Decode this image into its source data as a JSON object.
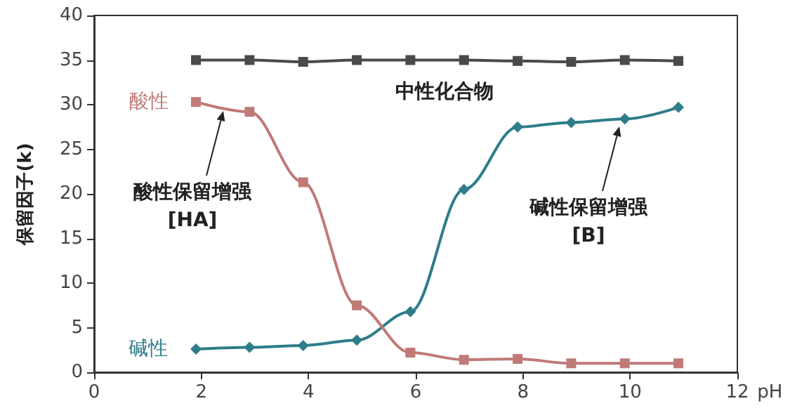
{
  "chart_data": {
    "type": "line",
    "xlabel": "pH",
    "ylabel": "保留因子(k)",
    "x": [
      1.9,
      2.9,
      3.9,
      4.9,
      5.9,
      6.9,
      7.9,
      8.9,
      9.9,
      10.9
    ],
    "series": [
      {
        "name": "中性化合物",
        "color": "#4a4a4a",
        "marker": "square",
        "values": [
          35,
          35,
          34.8,
          35,
          35,
          35,
          34.9,
          34.8,
          35,
          34.9
        ]
      },
      {
        "name": "酸性",
        "color": "#c07a78",
        "marker": "square",
        "values": [
          30.3,
          29.2,
          21.3,
          7.5,
          2.2,
          1.4,
          1.5,
          1.0,
          1.0,
          1.0
        ]
      },
      {
        "name": "碱性",
        "color": "#2e7d8a",
        "marker": "diamond",
        "values": [
          2.6,
          2.8,
          3.0,
          3.6,
          6.8,
          20.5,
          27.5,
          28.0,
          28.4,
          29.7
        ]
      }
    ],
    "annotations": [
      "酸性保留增强\n[HA]",
      "碱性保留增强\n[B]"
    ],
    "xlim": [
      0,
      12
    ],
    "xticks": [
      0,
      2,
      4,
      6,
      8,
      10,
      12
    ],
    "ylim": [
      0,
      40
    ],
    "yticks": [
      0,
      5,
      10,
      15,
      20,
      25,
      30,
      35,
      40
    ],
    "grid": false,
    "legend": false,
    "line_style": "solid"
  }
}
